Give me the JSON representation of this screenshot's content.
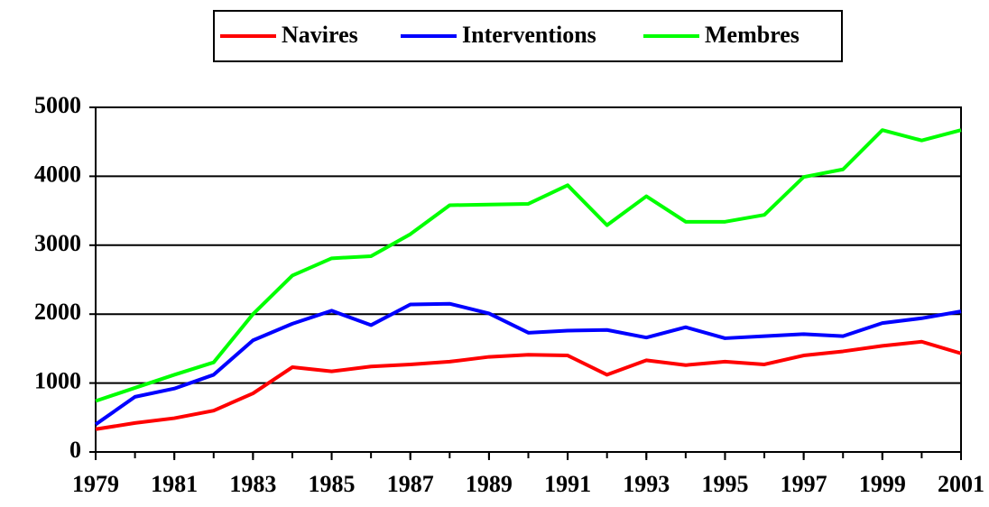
{
  "chart_data": {
    "type": "line",
    "x": [
      1979,
      1980,
      1981,
      1982,
      1983,
      1984,
      1985,
      1986,
      1987,
      1988,
      1989,
      1990,
      1991,
      1992,
      1993,
      1994,
      1995,
      1996,
      1997,
      1998,
      1999,
      2000,
      2001
    ],
    "series": [
      {
        "name": "Navires",
        "color": "#ff0000",
        "values": [
          330,
          420,
          490,
          600,
          850,
          1230,
          1170,
          1240,
          1270,
          1310,
          1380,
          1410,
          1400,
          1120,
          1330,
          1260,
          1310,
          1270,
          1400,
          1460,
          1540,
          1600,
          1430
        ]
      },
      {
        "name": "Interventions",
        "color": "#0000ff",
        "values": [
          400,
          800,
          920,
          1120,
          1620,
          1860,
          2050,
          1840,
          2140,
          2150,
          2010,
          1730,
          1760,
          1770,
          1660,
          1810,
          1650,
          1680,
          1710,
          1680,
          1870,
          1940,
          2040
        ]
      },
      {
        "name": "Membres",
        "color": "#00ff00",
        "values": [
          740,
          930,
          1120,
          1300,
          2000,
          2560,
          2810,
          2840,
          3160,
          3580,
          3590,
          3600,
          3870,
          3290,
          3710,
          3340,
          3340,
          3440,
          3990,
          4100,
          4670,
          4520,
          4670
        ]
      }
    ],
    "xlim": [
      1979,
      2001
    ],
    "xticks": [
      1979,
      1981,
      1983,
      1985,
      1987,
      1989,
      1991,
      1993,
      1995,
      1997,
      1999,
      2001
    ],
    "ylim": [
      0,
      5000
    ],
    "yticks": [
      0,
      1000,
      2000,
      3000,
      4000,
      5000
    ],
    "grid": true,
    "legend": "top"
  }
}
